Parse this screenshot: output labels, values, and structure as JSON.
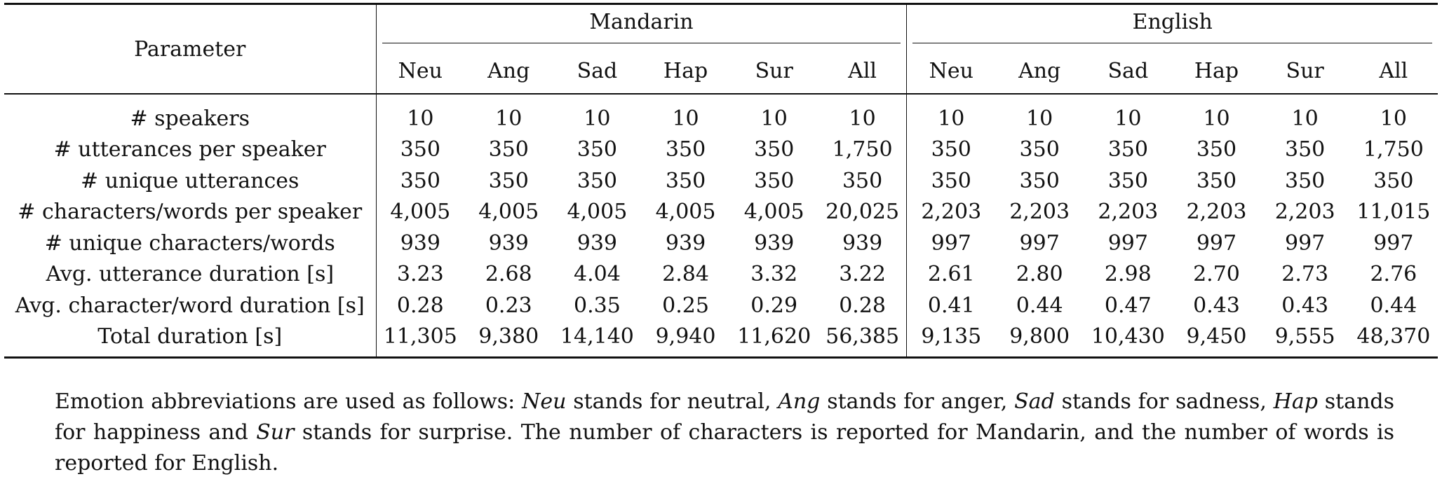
{
  "table": {
    "param_header": "Parameter",
    "groups": [
      "Mandarin",
      "English"
    ],
    "emotions": [
      "Neu",
      "Ang",
      "Sad",
      "Hap",
      "Sur",
      "All"
    ],
    "rows": [
      {
        "label": "# speakers",
        "mandarin": [
          "10",
          "10",
          "10",
          "10",
          "10",
          "10"
        ],
        "english": [
          "10",
          "10",
          "10",
          "10",
          "10",
          "10"
        ]
      },
      {
        "label": "# utterances per speaker",
        "mandarin": [
          "350",
          "350",
          "350",
          "350",
          "350",
          "1,750"
        ],
        "english": [
          "350",
          "350",
          "350",
          "350",
          "350",
          "1,750"
        ]
      },
      {
        "label": "# unique utterances",
        "mandarin": [
          "350",
          "350",
          "350",
          "350",
          "350",
          "350"
        ],
        "english": [
          "350",
          "350",
          "350",
          "350",
          "350",
          "350"
        ]
      },
      {
        "label": "# characters/words per speaker",
        "mandarin": [
          "4,005",
          "4,005",
          "4,005",
          "4,005",
          "4,005",
          "20,025"
        ],
        "english": [
          "2,203",
          "2,203",
          "2,203",
          "2,203",
          "2,203",
          "11,015"
        ]
      },
      {
        "label": "# unique characters/words",
        "mandarin": [
          "939",
          "939",
          "939",
          "939",
          "939",
          "939"
        ],
        "english": [
          "997",
          "997",
          "997",
          "997",
          "997",
          "997"
        ]
      },
      {
        "label": "Avg. utterance duration [s]",
        "mandarin": [
          "3.23",
          "2.68",
          "4.04",
          "2.84",
          "3.32",
          "3.22"
        ],
        "english": [
          "2.61",
          "2.80",
          "2.98",
          "2.70",
          "2.73",
          "2.76"
        ]
      },
      {
        "label": "Avg. character/word duration [s]",
        "mandarin": [
          "0.28",
          "0.23",
          "0.35",
          "0.25",
          "0.29",
          "0.28"
        ],
        "english": [
          "0.41",
          "0.44",
          "0.47",
          "0.43",
          "0.43",
          "0.44"
        ]
      },
      {
        "label": "Total duration [s]",
        "mandarin": [
          "11,305",
          "9,380",
          "14,140",
          "9,940",
          "11,620",
          "56,385"
        ],
        "english": [
          "9,135",
          "9,800",
          "10,430",
          "9,450",
          "9,555",
          "48,370"
        ]
      }
    ]
  },
  "caption": {
    "s1": "Emotion abbreviations are used as follows: ",
    "neu": "Neu",
    "s2": " stands for neutral, ",
    "ang": "Ang",
    "s3": " stands for anger, ",
    "sad": "Sad",
    "s4": " stands for sadness, ",
    "hap": "Hap",
    "s5": " stands for happiness and ",
    "sur": "Sur",
    "s6": " stands for surprise.  The number of characters is reported for Mandarin, and the number of words is reported for English."
  }
}
